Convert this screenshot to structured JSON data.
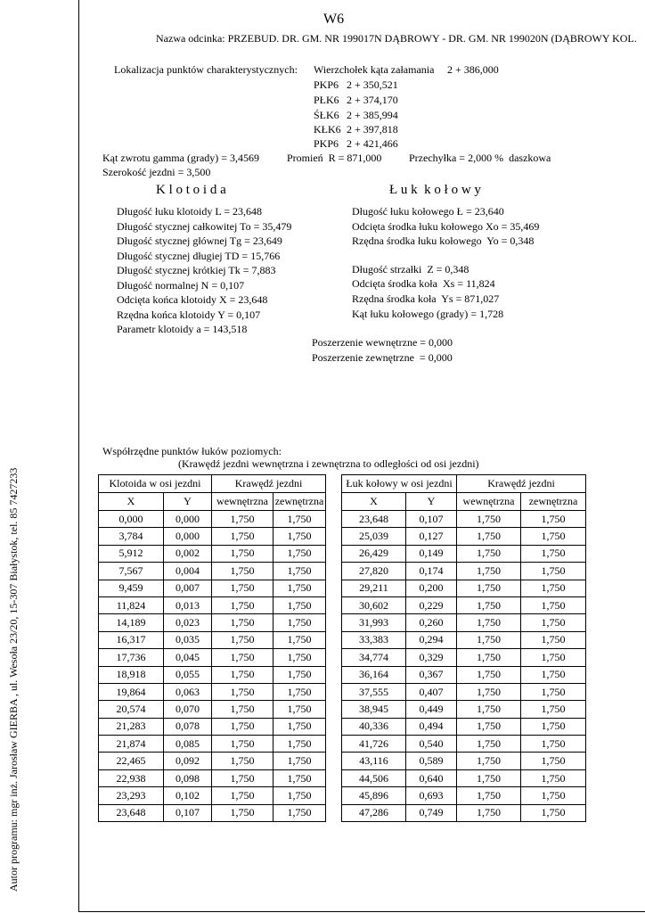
{
  "header": {
    "title": "W6",
    "section_name": "Nazwa odcinka: PRZEBUD. DR. GM. NR 199017N DĄBROWY - DR. GM. NR 199020N (DĄBROWY KOL."
  },
  "author": "Autor programu: mgr inż. Jarosław GIERBA , ul. Wesoła 23/20, 15-307 Białystok, tel. 85 7427233",
  "points": {
    "label": "Lokalizacja punktów charakterystycznych:",
    "items": [
      [
        "Wierzchołek kąta załamania",
        "2 + 386,000"
      ],
      [
        "PKP6",
        "2 + 350,521"
      ],
      [
        "PŁK6",
        "2 + 374,170"
      ],
      [
        "ŚŁK6",
        "2 + 385,994"
      ],
      [
        "KŁK6",
        "2 + 397,818"
      ],
      [
        "PKP6",
        "2 + 421,466"
      ]
    ]
  },
  "params": {
    "angle": "Kąt zwrotu gamma (grady) = 3,4569",
    "radius": "Promień  R = 871,000",
    "superelevation": "Przechyłka = 2,000 %  daszkowa",
    "width": "Szerokość jezdni = 3,500"
  },
  "clothoid": {
    "title": "K l o t o i d a",
    "items": [
      "Długość łuku klotoidy L = 23,648",
      "Długość stycznej całkowitej To = 35,479",
      "Długość stycznej głównej Tg = 23,649",
      "Długość stycznej długiej TD = 15,766",
      "Długość stycznej krótkiej Tk = 7,883",
      "Długość normalnej N = 0,107",
      "Odcięta końca klotoidy X = 23,648",
      "Rzędna końca klotoidy Y = 0,107",
      "Parametr klotoidy a = 143,518"
    ]
  },
  "arc": {
    "title": "Ł u k  k o ł o w y",
    "items": [
      "Długość łuku kołowego Ł = 23,640",
      "Odcięta środka łuku kołowego Xo = 35,469",
      "Rzędna środka łuku kołowego  Yo = 0,348",
      "Długość strzałki  Z = 0,348",
      "Odcięta środka koła  Xs = 11,824",
      "Rzędna środka koła  Ys = 871,027",
      "Kąt łuku kołowego (grady) = 1,728"
    ]
  },
  "widening": [
    "Poszerzenie wewnętrzne = 0,000",
    "Poszerzenie zewnętrzne  = 0,000"
  ],
  "coordinates": {
    "title": "Współrzędne punktów łuków poziomych:",
    "subtitle": "(Krawędź jezdni wewnętrzna i zewnętrzna to odległości od osi jezdni)",
    "tables": [
      {
        "group_headers": [
          "Klotoida w osi jezdni",
          "Krawędź jezdni"
        ],
        "headers": [
          "X",
          "Y",
          "wewnętrzna",
          "zewnętrzna"
        ],
        "rows": [
          [
            "0,000",
            "0,000",
            "1,750",
            "1,750"
          ],
          [
            "3,784",
            "0,000",
            "1,750",
            "1,750"
          ],
          [
            "5,912",
            "0,002",
            "1,750",
            "1,750"
          ],
          [
            "7,567",
            "0,004",
            "1,750",
            "1,750"
          ],
          [
            "9,459",
            "0,007",
            "1,750",
            "1,750"
          ],
          [
            "11,824",
            "0,013",
            "1,750",
            "1,750"
          ],
          [
            "14,189",
            "0,023",
            "1,750",
            "1,750"
          ],
          [
            "16,317",
            "0,035",
            "1,750",
            "1,750"
          ],
          [
            "17,736",
            "0,045",
            "1,750",
            "1,750"
          ],
          [
            "18,918",
            "0,055",
            "1,750",
            "1,750"
          ],
          [
            "19,864",
            "0,063",
            "1,750",
            "1,750"
          ],
          [
            "20,574",
            "0,070",
            "1,750",
            "1,750"
          ],
          [
            "21,283",
            "0,078",
            "1,750",
            "1,750"
          ],
          [
            "21,874",
            "0,085",
            "1,750",
            "1,750"
          ],
          [
            "22,465",
            "0,092",
            "1,750",
            "1,750"
          ],
          [
            "22,938",
            "0,098",
            "1,750",
            "1,750"
          ],
          [
            "23,293",
            "0,102",
            "1,750",
            "1,750"
          ],
          [
            "23,648",
            "0,107",
            "1,750",
            "1,750"
          ]
        ]
      },
      {
        "group_headers": [
          "Łuk kołowy w osi jezdni",
          "Krawędź jezdni"
        ],
        "headers": [
          "X",
          "Y",
          "wewnętrzna",
          "zewnętrzna"
        ],
        "rows": [
          [
            "23,648",
            "0,107",
            "1,750",
            "1,750"
          ],
          [
            "25,039",
            "0,127",
            "1,750",
            "1,750"
          ],
          [
            "26,429",
            "0,149",
            "1,750",
            "1,750"
          ],
          [
            "27,820",
            "0,174",
            "1,750",
            "1,750"
          ],
          [
            "29,211",
            "0,200",
            "1,750",
            "1,750"
          ],
          [
            "30,602",
            "0,229",
            "1,750",
            "1,750"
          ],
          [
            "31,993",
            "0,260",
            "1,750",
            "1,750"
          ],
          [
            "33,383",
            "0,294",
            "1,750",
            "1,750"
          ],
          [
            "34,774",
            "0,329",
            "1,750",
            "1,750"
          ],
          [
            "36,164",
            "0,367",
            "1,750",
            "1,750"
          ],
          [
            "37,555",
            "0,407",
            "1,750",
            "1,750"
          ],
          [
            "38,945",
            "0,449",
            "1,750",
            "1,750"
          ],
          [
            "40,336",
            "0,494",
            "1,750",
            "1,750"
          ],
          [
            "41,726",
            "0,540",
            "1,750",
            "1,750"
          ],
          [
            "43,116",
            "0,589",
            "1,750",
            "1,750"
          ],
          [
            "44,506",
            "0,640",
            "1,750",
            "1,750"
          ],
          [
            "45,896",
            "0,693",
            "1,750",
            "1,750"
          ],
          [
            "47,286",
            "0,749",
            "1,750",
            "1,750"
          ]
        ]
      }
    ]
  }
}
